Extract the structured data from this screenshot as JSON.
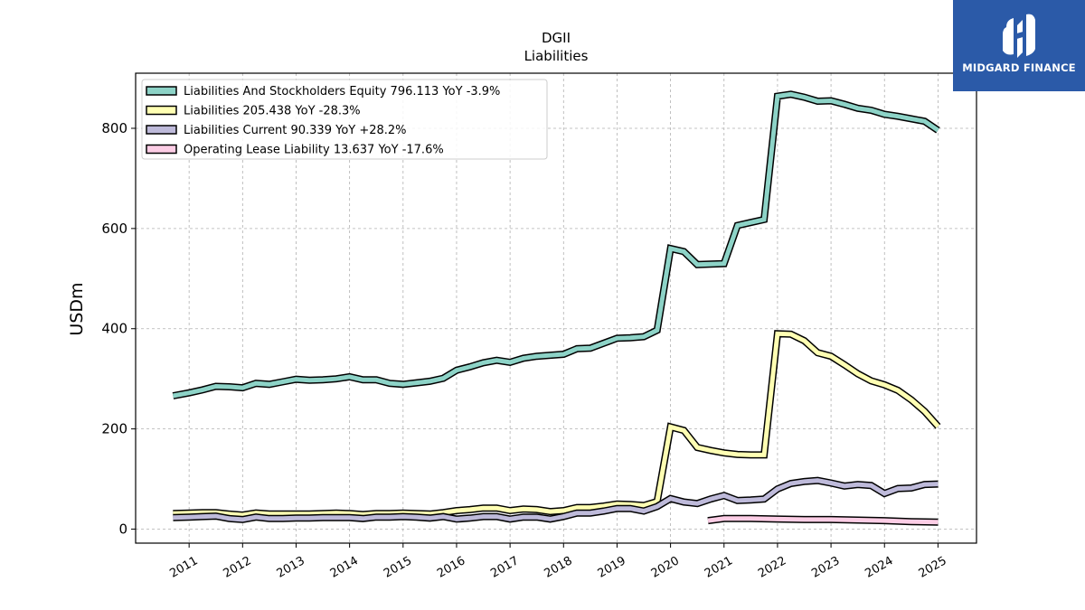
{
  "chart_data": {
    "type": "line",
    "title": "DGII",
    "subtitle": "Liabilities",
    "ylabel": "USDm",
    "xlabel": "",
    "xlim": [
      2010.0,
      2025.72
    ],
    "ylim": [
      -28,
      910
    ],
    "yticks": [
      0,
      200,
      400,
      600,
      800
    ],
    "xticks": [
      "2011",
      "2012",
      "2013",
      "2014",
      "2015",
      "2016",
      "2017",
      "2018",
      "2019",
      "2020",
      "2021",
      "2022",
      "2023",
      "2024",
      "2025"
    ],
    "grid": true,
    "legend_position": "top-left",
    "series": [
      {
        "name": "Liabilities And Stockholders Equity",
        "legend_label": "Liabilities And Stockholders Equity  796.113 YoY -3.9%",
        "color": "#8dd3c7",
        "points": [
          [
            2010.7,
            266
          ],
          [
            2011.0,
            272
          ],
          [
            2011.25,
            278
          ],
          [
            2011.5,
            285
          ],
          [
            2011.75,
            284
          ],
          [
            2012.0,
            282
          ],
          [
            2012.25,
            291
          ],
          [
            2012.5,
            289
          ],
          [
            2012.75,
            294
          ],
          [
            2013.0,
            299
          ],
          [
            2013.25,
            297
          ],
          [
            2013.5,
            298
          ],
          [
            2013.75,
            300
          ],
          [
            2014.0,
            304
          ],
          [
            2014.25,
            298
          ],
          [
            2014.5,
            298
          ],
          [
            2014.75,
            291
          ],
          [
            2015.0,
            289
          ],
          [
            2015.25,
            292
          ],
          [
            2015.5,
            295
          ],
          [
            2015.75,
            301
          ],
          [
            2016.0,
            317
          ],
          [
            2016.25,
            324
          ],
          [
            2016.5,
            332
          ],
          [
            2016.75,
            337
          ],
          [
            2017.0,
            333
          ],
          [
            2017.25,
            341
          ],
          [
            2017.5,
            345
          ],
          [
            2017.75,
            347
          ],
          [
            2018.0,
            349
          ],
          [
            2018.25,
            360
          ],
          [
            2018.5,
            361
          ],
          [
            2018.75,
            371
          ],
          [
            2019.0,
            381
          ],
          [
            2019.25,
            382
          ],
          [
            2019.5,
            384
          ],
          [
            2019.75,
            397
          ],
          [
            2020.0,
            560
          ],
          [
            2020.25,
            554
          ],
          [
            2020.5,
            528
          ],
          [
            2020.75,
            529
          ],
          [
            2021.0,
            530
          ],
          [
            2021.25,
            606
          ],
          [
            2021.5,
            612
          ],
          [
            2021.75,
            618
          ],
          [
            2022.0,
            864
          ],
          [
            2022.25,
            868
          ],
          [
            2022.5,
            862
          ],
          [
            2022.75,
            854
          ],
          [
            2023.0,
            855
          ],
          [
            2023.25,
            848
          ],
          [
            2023.5,
            840
          ],
          [
            2023.75,
            836
          ],
          [
            2024.0,
            828
          ],
          [
            2024.25,
            824
          ],
          [
            2024.5,
            819
          ],
          [
            2024.75,
            814
          ],
          [
            2025.0,
            796
          ]
        ]
      },
      {
        "name": "Liabilities",
        "legend_label": "Liabilities  205.438 YoY -28.3%",
        "color": "#ffffb3",
        "points": [
          [
            2010.7,
            31
          ],
          [
            2011.0,
            32
          ],
          [
            2011.25,
            33
          ],
          [
            2011.5,
            33
          ],
          [
            2011.75,
            30
          ],
          [
            2012.0,
            28
          ],
          [
            2012.25,
            32
          ],
          [
            2012.5,
            30
          ],
          [
            2012.75,
            30
          ],
          [
            2013.0,
            30
          ],
          [
            2013.25,
            30
          ],
          [
            2013.5,
            31
          ],
          [
            2013.75,
            32
          ],
          [
            2014.0,
            31
          ],
          [
            2014.25,
            29
          ],
          [
            2014.5,
            31
          ],
          [
            2014.75,
            31
          ],
          [
            2015.0,
            32
          ],
          [
            2015.25,
            31
          ],
          [
            2015.5,
            30
          ],
          [
            2015.75,
            33
          ],
          [
            2016.0,
            37
          ],
          [
            2016.25,
            39
          ],
          [
            2016.5,
            42
          ],
          [
            2016.75,
            42
          ],
          [
            2017.0,
            37
          ],
          [
            2017.25,
            40
          ],
          [
            2017.5,
            39
          ],
          [
            2017.75,
            35
          ],
          [
            2018.0,
            37
          ],
          [
            2018.25,
            43
          ],
          [
            2018.5,
            43
          ],
          [
            2018.75,
            46
          ],
          [
            2019.0,
            50
          ],
          [
            2019.25,
            49
          ],
          [
            2019.5,
            47
          ],
          [
            2019.75,
            55
          ],
          [
            2020.0,
            204
          ],
          [
            2020.25,
            197
          ],
          [
            2020.5,
            163
          ],
          [
            2020.75,
            157
          ],
          [
            2021.0,
            152
          ],
          [
            2021.25,
            149
          ],
          [
            2021.5,
            148
          ],
          [
            2021.75,
            148
          ],
          [
            2022.0,
            390
          ],
          [
            2022.25,
            389
          ],
          [
            2022.5,
            376
          ],
          [
            2022.75,
            352
          ],
          [
            2023.0,
            345
          ],
          [
            2023.25,
            328
          ],
          [
            2023.5,
            310
          ],
          [
            2023.75,
            296
          ],
          [
            2024.0,
            288
          ],
          [
            2024.25,
            277
          ],
          [
            2024.5,
            258
          ],
          [
            2024.75,
            235
          ],
          [
            2025.0,
            205
          ]
        ]
      },
      {
        "name": "Liabilities Current",
        "legend_label": "Liabilities Current  90.339 YoY +28.2%",
        "color": "#bebada",
        "points": [
          [
            2010.7,
            23
          ],
          [
            2011.0,
            24
          ],
          [
            2011.25,
            25
          ],
          [
            2011.5,
            26
          ],
          [
            2011.75,
            21
          ],
          [
            2012.0,
            19
          ],
          [
            2012.25,
            24
          ],
          [
            2012.5,
            21
          ],
          [
            2012.75,
            21
          ],
          [
            2013.0,
            22
          ],
          [
            2013.25,
            22
          ],
          [
            2013.5,
            23
          ],
          [
            2013.75,
            23
          ],
          [
            2014.0,
            23
          ],
          [
            2014.25,
            21
          ],
          [
            2014.5,
            24
          ],
          [
            2014.75,
            24
          ],
          [
            2015.0,
            25
          ],
          [
            2015.25,
            24
          ],
          [
            2015.5,
            22
          ],
          [
            2015.75,
            25
          ],
          [
            2016.0,
            20
          ],
          [
            2016.25,
            22
          ],
          [
            2016.5,
            25
          ],
          [
            2016.75,
            25
          ],
          [
            2017.0,
            20
          ],
          [
            2017.25,
            24
          ],
          [
            2017.5,
            24
          ],
          [
            2017.75,
            20
          ],
          [
            2018.0,
            25
          ],
          [
            2018.25,
            32
          ],
          [
            2018.5,
            32
          ],
          [
            2018.75,
            36
          ],
          [
            2019.0,
            41
          ],
          [
            2019.25,
            41
          ],
          [
            2019.5,
            36
          ],
          [
            2019.75,
            45
          ],
          [
            2020.0,
            61
          ],
          [
            2020.25,
            54
          ],
          [
            2020.5,
            51
          ],
          [
            2020.75,
            60
          ],
          [
            2021.0,
            67
          ],
          [
            2021.25,
            57
          ],
          [
            2021.5,
            58
          ],
          [
            2021.75,
            60
          ],
          [
            2022.0,
            80
          ],
          [
            2022.25,
            91
          ],
          [
            2022.5,
            95
          ],
          [
            2022.75,
            97
          ],
          [
            2023.0,
            92
          ],
          [
            2023.25,
            86
          ],
          [
            2023.5,
            89
          ],
          [
            2023.75,
            87
          ],
          [
            2024.0,
            71
          ],
          [
            2024.25,
            81
          ],
          [
            2024.5,
            82
          ],
          [
            2024.75,
            89
          ],
          [
            2025.0,
            90
          ]
        ]
      },
      {
        "name": "Operating Lease Liability",
        "legend_label": "Operating Lease Liability  13.637 YoY -17.6%",
        "color": "#fccde5",
        "points": [
          [
            2020.7,
            17
          ],
          [
            2021.0,
            21
          ],
          [
            2021.5,
            21
          ],
          [
            2022.0,
            20
          ],
          [
            2022.5,
            19
          ],
          [
            2023.0,
            19
          ],
          [
            2023.5,
            18
          ],
          [
            2024.0,
            17
          ],
          [
            2024.5,
            15
          ],
          [
            2025.0,
            14
          ]
        ]
      }
    ]
  },
  "logo": {
    "text": "MIDGARD FINANCE",
    "background": "#2b5aa8"
  }
}
